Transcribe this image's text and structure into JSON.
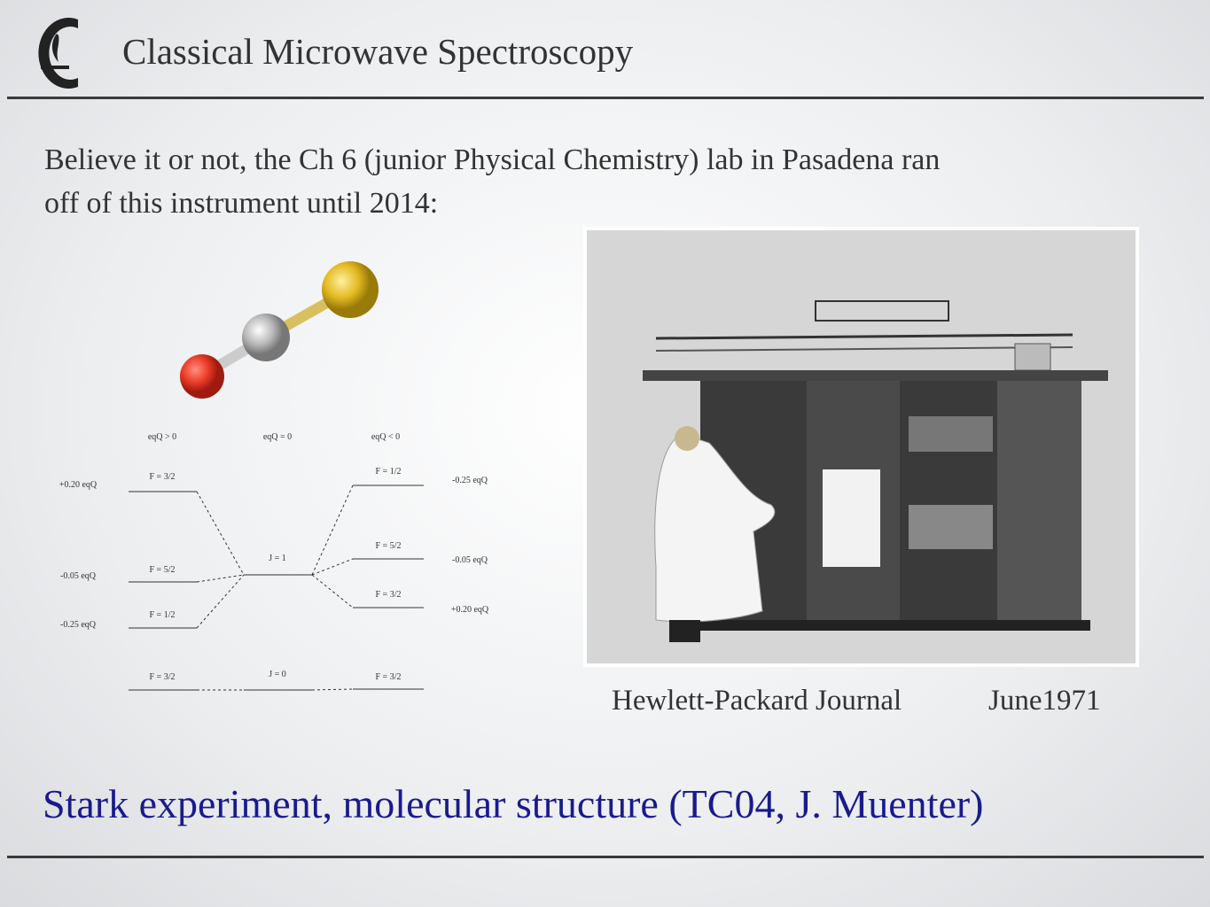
{
  "header": {
    "title": "Classical Microwave Spectroscopy"
  },
  "body": {
    "lines": [
      "Believe it or not, the Ch 6 (junior Physical Chemistry) lab in Pasadena ran",
      "off of this instrument until 2014:"
    ]
  },
  "diagram": {
    "columns": [
      "eqQ > 0",
      "eqQ = 0",
      "eqQ < 0"
    ],
    "left": [
      {
        "label": "F = 3/2",
        "shift": "+0.20 eqQ"
      },
      {
        "label": "F = 5/2",
        "shift": "-0.05 eqQ"
      },
      {
        "label": "F = 1/2",
        "shift": "-0.25 eqQ"
      },
      {
        "label": "F = 3/2"
      }
    ],
    "center": [
      "J = 1",
      "J = 0"
    ],
    "right": [
      {
        "label": "F = 1/2",
        "shift": "-0.25 eqQ"
      },
      {
        "label": "F = 5/2",
        "shift": "-0.05 eqQ"
      },
      {
        "label": "F = 3/2",
        "shift": "+0.20 eqQ"
      },
      {
        "label": "F = 3/2"
      }
    ]
  },
  "caption": {
    "source": "Hewlett-Packard Journal",
    "date": "June1971"
  },
  "footer": {
    "text": "Stark experiment, molecular structure (TC04, J. Muenter)"
  }
}
